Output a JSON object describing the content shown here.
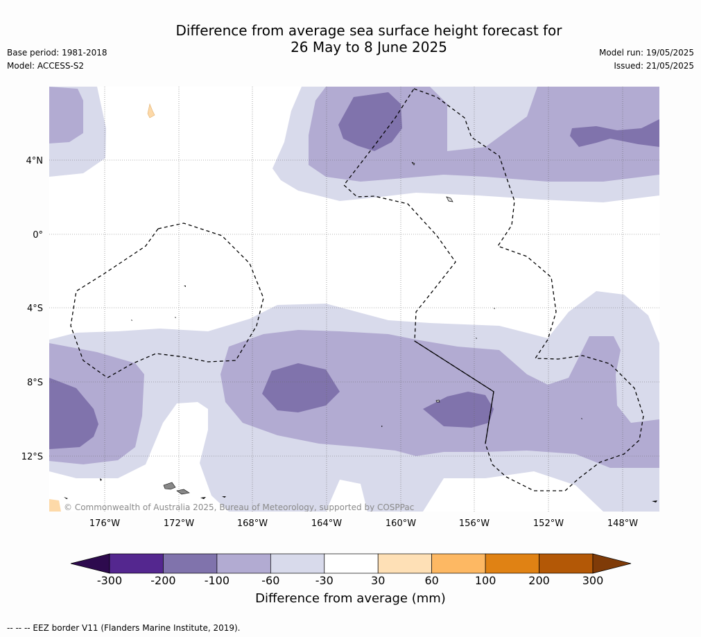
{
  "title_line1": "Difference from average sea surface height forecast for",
  "title_line2": "26 May to 8 June 2025",
  "base_period": "Base period: 1981-2018",
  "model": "Model: ACCESS-S2",
  "model_run": "Model run: 19/05/2025",
  "issued": "Issued: 21/05/2025",
  "copyright": "© Commonwealth of Australia 2025, Bureau of Meteorology, supported by COSPPac",
  "lat_labels": [
    "4°N",
    "0°",
    "4°S",
    "8°S",
    "12°S"
  ],
  "lon_labels": [
    "176°W",
    "172°W",
    "168°W",
    "164°W",
    "160°W",
    "156°W",
    "152°W",
    "148°W"
  ],
  "colorbar": {
    "title": "Difference from average (mm)",
    "labels": [
      "-300",
      "-200",
      "-100",
      "-60",
      "-30",
      "30",
      "60",
      "100",
      "200",
      "300"
    ],
    "colors": [
      "#2d0a4e",
      "#54278f",
      "#8073ac",
      "#b2abd2",
      "#d8daeb",
      "#ffffff",
      "#fee0b6",
      "#fdb863",
      "#e08214",
      "#b35806",
      "#7f3b08"
    ]
  },
  "footnote": "--  --  -- EEZ border V11 (Flanders Marine Institute, 2019)."
}
